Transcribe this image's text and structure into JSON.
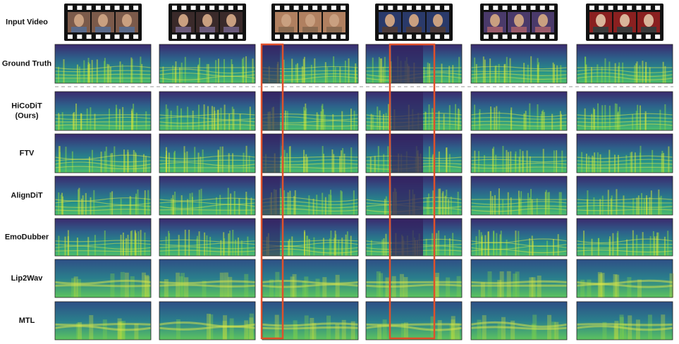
{
  "rows": [
    {
      "lines": [
        "Input Video"
      ]
    },
    {
      "lines": [
        "Ground Truth"
      ]
    },
    {
      "lines": [
        "HiCoDiT",
        "(Ours)"
      ]
    },
    {
      "lines": [
        "FTV"
      ]
    },
    {
      "lines": [
        "AlignDiT"
      ]
    },
    {
      "lines": [
        "EmoDubber"
      ]
    },
    {
      "lines": [
        "Lip2Wav"
      ]
    },
    {
      "lines": [
        "MTL"
      ]
    }
  ]
}
